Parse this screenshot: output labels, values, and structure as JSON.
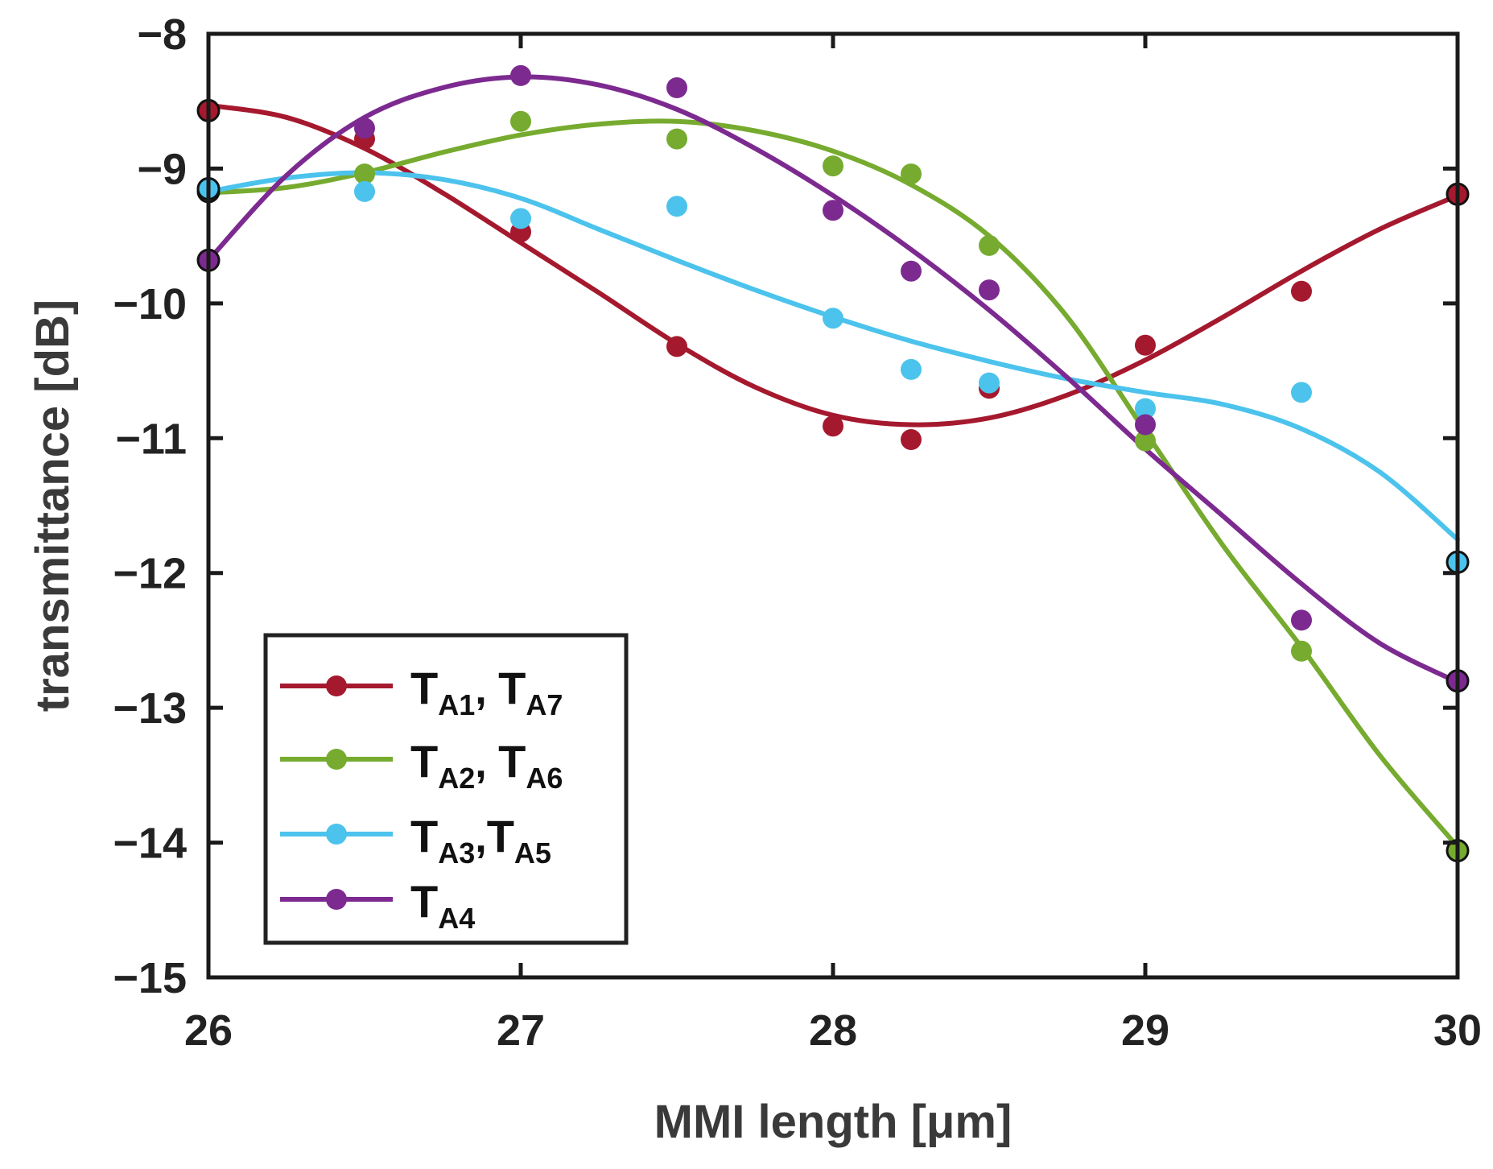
{
  "chart_data": {
    "type": "line",
    "title": "",
    "xlabel": "MMI length  [μm]",
    "ylabel": "transmittance [dB]",
    "xlim": [
      26,
      30
    ],
    "ylim": [
      -15,
      -8
    ],
    "xticks": [
      26,
      27,
      28,
      29,
      30
    ],
    "yticks": [
      -15,
      -14,
      -13,
      -12,
      -11,
      -10,
      -9,
      -8
    ],
    "xtick_labels": [
      "26",
      "27",
      "28",
      "29",
      "30"
    ],
    "ytick_labels": [
      "−15",
      "−14",
      "−13",
      "−12",
      "−11",
      "−10",
      "−9",
      "−8"
    ],
    "grid": false,
    "legend_position": "bottom-left",
    "series": [
      {
        "name": "TA1, TA7",
        "legend_main": [
          "T",
          "T"
        ],
        "legend_sub": [
          "A1",
          "A7"
        ],
        "legend_sep": ",  ",
        "color": "#a5192e",
        "points": [
          [
            26,
            -8.57
          ],
          [
            26.5,
            -8.78
          ],
          [
            27,
            -9.47
          ],
          [
            27.5,
            -10.32
          ],
          [
            28,
            -10.91
          ],
          [
            28.25,
            -11.01
          ],
          [
            28.5,
            -10.63
          ],
          [
            29,
            -10.31
          ],
          [
            29.5,
            -9.91
          ],
          [
            30,
            -9.19
          ]
        ],
        "fit": [
          [
            26,
            -8.53
          ],
          [
            26.25,
            -8.62
          ],
          [
            26.5,
            -8.85
          ],
          [
            26.75,
            -9.18
          ],
          [
            27,
            -9.55
          ],
          [
            27.25,
            -9.92
          ],
          [
            27.5,
            -10.3
          ],
          [
            27.75,
            -10.62
          ],
          [
            28,
            -10.83
          ],
          [
            28.25,
            -10.9
          ],
          [
            28.5,
            -10.85
          ],
          [
            28.75,
            -10.68
          ],
          [
            29,
            -10.42
          ],
          [
            29.25,
            -10.1
          ],
          [
            29.5,
            -9.76
          ],
          [
            29.75,
            -9.45
          ],
          [
            30,
            -9.2
          ]
        ]
      },
      {
        "name": "TA2, TA6",
        "legend_main": [
          "T",
          "T"
        ],
        "legend_sub": [
          "A2",
          "A6"
        ],
        "legend_sep": ",  ",
        "color": "#76ab2f",
        "points": [
          [
            26,
            -9.17
          ],
          [
            26.5,
            -9.04
          ],
          [
            27,
            -8.65
          ],
          [
            27.5,
            -8.78
          ],
          [
            28,
            -8.98
          ],
          [
            28.25,
            -9.04
          ],
          [
            28.5,
            -9.57
          ],
          [
            29,
            -11.02
          ],
          [
            29.5,
            -12.58
          ],
          [
            30,
            -14.06
          ]
        ],
        "fit": [
          [
            26,
            -9.18
          ],
          [
            26.25,
            -9.14
          ],
          [
            26.5,
            -9.03
          ],
          [
            26.75,
            -8.88
          ],
          [
            27,
            -8.75
          ],
          [
            27.25,
            -8.67
          ],
          [
            27.5,
            -8.65
          ],
          [
            27.75,
            -8.72
          ],
          [
            28,
            -8.87
          ],
          [
            28.25,
            -9.12
          ],
          [
            28.5,
            -9.5
          ],
          [
            28.75,
            -10.1
          ],
          [
            29,
            -10.95
          ],
          [
            29.25,
            -11.8
          ],
          [
            29.5,
            -12.55
          ],
          [
            29.75,
            -13.35
          ],
          [
            30,
            -14.03
          ]
        ]
      },
      {
        "name": "TA3,TA5",
        "legend_main": [
          "T",
          "T"
        ],
        "legend_sub": [
          "A3",
          "A5"
        ],
        "legend_sep": ",",
        "color": "#4cc3ec",
        "points": [
          [
            26,
            -9.15
          ],
          [
            26.5,
            -9.17
          ],
          [
            27,
            -9.37
          ],
          [
            27.5,
            -9.28
          ],
          [
            28,
            -10.11
          ],
          [
            28.25,
            -10.49
          ],
          [
            28.5,
            -10.59
          ],
          [
            29,
            -10.78
          ],
          [
            29.5,
            -10.66
          ],
          [
            30,
            -11.92
          ]
        ],
        "fit": [
          [
            26,
            -9.17
          ],
          [
            26.25,
            -9.07
          ],
          [
            26.5,
            -9.03
          ],
          [
            26.75,
            -9.08
          ],
          [
            27,
            -9.22
          ],
          [
            27.25,
            -9.45
          ],
          [
            27.5,
            -9.68
          ],
          [
            27.75,
            -9.9
          ],
          [
            28,
            -10.1
          ],
          [
            28.25,
            -10.28
          ],
          [
            28.5,
            -10.43
          ],
          [
            28.75,
            -10.56
          ],
          [
            29,
            -10.66
          ],
          [
            29.25,
            -10.75
          ],
          [
            29.5,
            -10.93
          ],
          [
            29.75,
            -11.25
          ],
          [
            30,
            -11.75
          ]
        ]
      },
      {
        "name": "TA4",
        "legend_main": [
          "T"
        ],
        "legend_sub": [
          "A4"
        ],
        "legend_sep": "",
        "color": "#7c2a90",
        "points": [
          [
            26,
            -9.68
          ],
          [
            26.5,
            -8.7
          ],
          [
            27,
            -8.31
          ],
          [
            27.5,
            -8.4
          ],
          [
            28,
            -9.31
          ],
          [
            28.25,
            -9.76
          ],
          [
            28.5,
            -9.9
          ],
          [
            29,
            -10.9
          ],
          [
            29.5,
            -12.35
          ],
          [
            30,
            -12.8
          ]
        ],
        "fit": [
          [
            26,
            -9.68
          ],
          [
            26.25,
            -9.05
          ],
          [
            26.5,
            -8.62
          ],
          [
            26.75,
            -8.4
          ],
          [
            27,
            -8.32
          ],
          [
            27.25,
            -8.38
          ],
          [
            27.5,
            -8.56
          ],
          [
            27.75,
            -8.85
          ],
          [
            28,
            -9.2
          ],
          [
            28.25,
            -9.6
          ],
          [
            28.5,
            -10.05
          ],
          [
            28.75,
            -10.55
          ],
          [
            29,
            -11.08
          ],
          [
            29.25,
            -11.58
          ],
          [
            29.5,
            -12.08
          ],
          [
            29.75,
            -12.52
          ],
          [
            30,
            -12.81
          ]
        ]
      }
    ]
  }
}
